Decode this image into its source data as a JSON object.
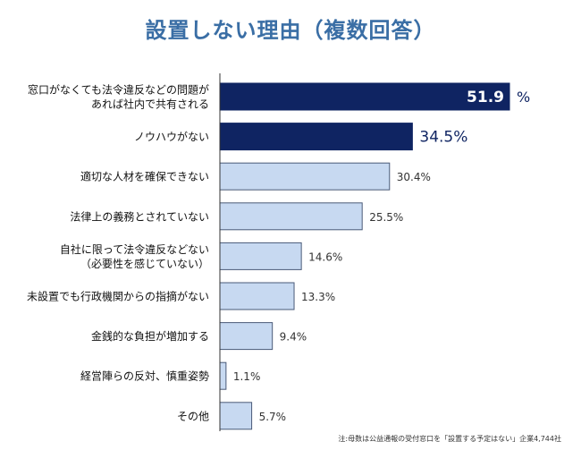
{
  "chart_data": {
    "type": "bar",
    "orientation": "horizontal",
    "title": "設置しない理由（複数回答）",
    "categories": [
      [
        "窓口がなくても法令違反などの問題が",
        "あれば社内で共有される"
      ],
      [
        "ノウハウがない"
      ],
      [
        "適切な人材を確保できない"
      ],
      [
        "法律上の義務とされていない"
      ],
      [
        "自社に限って法令違反などない",
        "（必要性を感じていない）"
      ],
      [
        "未設置でも行政機関からの指摘がない"
      ],
      [
        "金銭的な負担が増加する"
      ],
      [
        "経営陣らの反対、慎重姿勢"
      ],
      [
        "その他"
      ]
    ],
    "values": [
      51.9,
      34.5,
      30.4,
      25.5,
      14.6,
      13.3,
      9.4,
      1.1,
      5.7
    ],
    "value_labels": [
      "51.9",
      "34.5%",
      "30.4%",
      "25.5%",
      "14.6%",
      "13.3%",
      "9.4%",
      "1.1%",
      "5.7%"
    ],
    "first_unit_label": "%",
    "highlight": [
      true,
      true,
      false,
      false,
      false,
      false,
      false,
      false,
      false
    ],
    "xlim": [
      0,
      60
    ],
    "grid": false,
    "colors": {
      "highlight": "#0f2462",
      "normal": "#c7d9f1",
      "normal_border": "#4a5a78",
      "title": "#3a6ea5"
    }
  },
  "note": "注:母数は公益通報の受付窓口を「設置する予定はない」企業4,744社"
}
